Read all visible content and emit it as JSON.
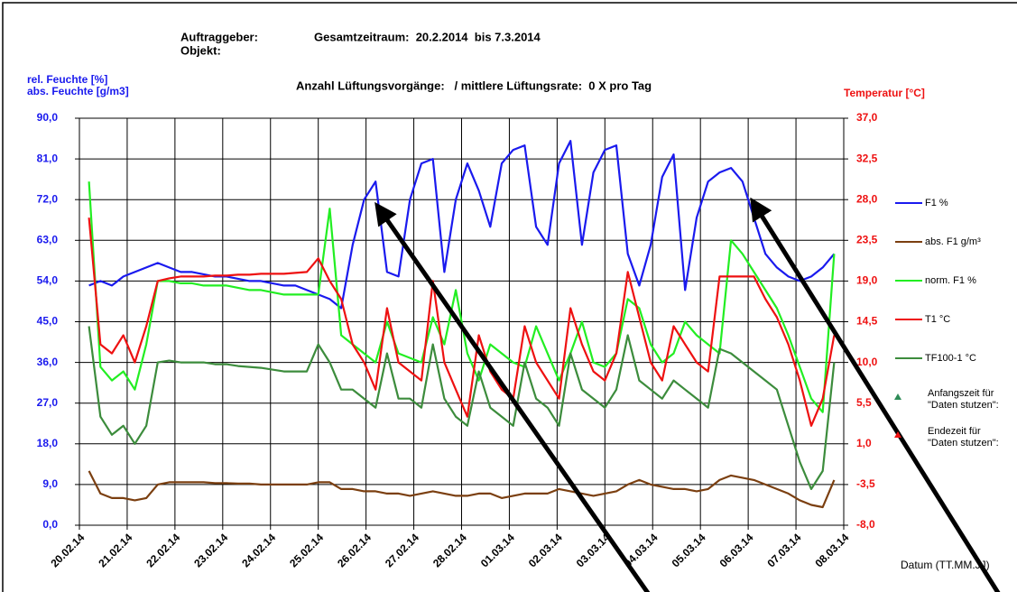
{
  "chart_data": {
    "type": "line",
    "title": "Gesamtzeitraum:  20.2.2014  bis 7.3.2014",
    "subtitle": "Anzahl Lüftungsvorgänge:   / mittlere Lüftungsrate:  0 X pro Tag",
    "annotations": [
      "Auftraggeber:",
      "Objekt:"
    ],
    "ylabel": [
      "rel. Feuchte [%]",
      "abs. Feuchte [g/m3]"
    ],
    "y2label": "Temperatur [°C]",
    "xlabel": "Datum (TT.MM.JJ)",
    "grid": true,
    "legend": "right",
    "xlim": [
      0,
      16
    ],
    "xticks": [
      {
        "value": 0,
        "label": "20.02.14"
      },
      {
        "value": 1,
        "label": "21.02.14"
      },
      {
        "value": 2,
        "label": "22.02.14"
      },
      {
        "value": 3,
        "label": "23.02.14"
      },
      {
        "value": 4,
        "label": "24.02.14"
      },
      {
        "value": 5,
        "label": "25.02.14"
      },
      {
        "value": 6,
        "label": "26.02.14"
      },
      {
        "value": 7,
        "label": "27.02.14"
      },
      {
        "value": 8,
        "label": "28.02.14"
      },
      {
        "value": 9,
        "label": "01.03.14"
      },
      {
        "value": 10,
        "label": "02.03.14"
      },
      {
        "value": 11,
        "label": "03.03.14"
      },
      {
        "value": 12,
        "label": "04.03.14"
      },
      {
        "value": 13,
        "label": "05.03.14"
      },
      {
        "value": 14,
        "label": "06.03.14"
      },
      {
        "value": 15,
        "label": "07.03.14"
      },
      {
        "value": 16,
        "label": "08.03.14"
      }
    ],
    "ylim": [
      0,
      90
    ],
    "yticks": [
      {
        "value": 0,
        "label": "0,0"
      },
      {
        "value": 9,
        "label": "9,0"
      },
      {
        "value": 18,
        "label": "18,0"
      },
      {
        "value": 27,
        "label": "27,0"
      },
      {
        "value": 36,
        "label": "36,0"
      },
      {
        "value": 45,
        "label": "45,0"
      },
      {
        "value": 54,
        "label": "54,0"
      },
      {
        "value": 63,
        "label": "63,0"
      },
      {
        "value": 72,
        "label": "72,0"
      },
      {
        "value": 81,
        "label": "81,0"
      },
      {
        "value": 90,
        "label": "90,0"
      }
    ],
    "y2lim": [
      -8,
      37
    ],
    "y2ticks": [
      {
        "value": -8,
        "label": "-8,0"
      },
      {
        "value": -3.5,
        "label": "-3,5"
      },
      {
        "value": 1,
        "label": "1,0"
      },
      {
        "value": 5.5,
        "label": "5,5"
      },
      {
        "value": 10,
        "label": "10,0"
      },
      {
        "value": 14.5,
        "label": "14,5"
      },
      {
        "value": 19,
        "label": "19,0"
      },
      {
        "value": 23.5,
        "label": "23,5"
      },
      {
        "value": 28,
        "label": "28,0"
      },
      {
        "value": 32.5,
        "label": "32,5"
      },
      {
        "value": 37,
        "label": "37,0"
      }
    ],
    "x": [
      0.2,
      0.44,
      0.68,
      0.92,
      1.16,
      1.4,
      1.64,
      1.88,
      2.12,
      2.36,
      2.6,
      2.84,
      3.08,
      3.32,
      3.56,
      3.8,
      4.04,
      4.28,
      4.52,
      4.76,
      5,
      5.24,
      5.48,
      5.72,
      5.96,
      6.2,
      6.44,
      6.68,
      6.92,
      7.16,
      7.4,
      7.64,
      7.88,
      8.12,
      8.36,
      8.6,
      8.84,
      9.08,
      9.32,
      9.56,
      9.8,
      10.04,
      10.28,
      10.52,
      10.76,
      11,
      11.24,
      11.48,
      11.72,
      11.96,
      12.2,
      12.44,
      12.68,
      12.92,
      13.16,
      13.4,
      13.64,
      13.88,
      14.12,
      14.36,
      14.6,
      14.84,
      15.08,
      15.32,
      15.56,
      15.8
    ],
    "series": [
      {
        "name": "F1 %",
        "color": "#1a1aee",
        "axis": "y",
        "values": [
          53,
          54,
          53,
          55,
          56,
          57,
          58,
          57,
          56,
          56,
          55.5,
          55,
          55,
          54.5,
          54,
          54,
          53.5,
          53,
          53,
          52,
          51,
          50,
          48,
          62,
          72,
          76,
          56,
          55,
          72,
          80,
          81,
          56,
          72,
          80,
          74,
          66,
          80,
          83,
          84,
          66,
          62,
          80,
          85,
          62,
          78,
          83,
          84,
          60,
          53,
          62,
          77,
          82,
          52,
          68,
          76,
          78,
          79,
          76,
          68,
          60,
          57,
          55,
          54,
          55,
          57,
          60
        ]
      },
      {
        "name": "abs. F1 g/m³",
        "color": "#7b3f10",
        "axis": "y",
        "values": [
          12,
          7,
          6,
          6,
          5.5,
          6,
          9,
          9.5,
          9.5,
          9.5,
          9.5,
          9.3,
          9.3,
          9.2,
          9.2,
          9,
          9,
          9,
          9,
          9,
          9.5,
          9.5,
          8,
          8,
          7.5,
          7.5,
          7,
          7,
          6.5,
          7,
          7.5,
          7,
          6.5,
          6.5,
          7,
          7,
          6,
          6.5,
          7,
          7,
          7,
          8,
          7.5,
          7,
          6.5,
          7,
          7.5,
          9,
          10,
          9,
          8.5,
          8,
          8,
          7.5,
          8,
          10,
          11,
          10.5,
          10,
          9,
          8,
          7,
          5.5,
          4.5,
          4,
          10
        ]
      },
      {
        "name": "norm. F1 %",
        "color": "#22ee22",
        "axis": "y",
        "values": [
          76,
          35,
          32,
          34,
          30,
          40,
          54,
          54,
          53.5,
          53.5,
          53,
          53,
          53,
          52.5,
          52,
          52,
          51.5,
          51,
          51,
          51,
          51,
          70,
          42,
          40,
          38,
          36,
          45,
          38,
          37,
          36,
          46,
          40,
          52,
          38,
          32,
          40,
          38,
          36,
          35,
          44,
          38,
          32,
          38,
          45,
          36,
          35,
          38,
          50,
          48,
          40,
          36,
          38,
          45,
          42,
          40,
          38,
          63,
          60,
          56,
          52,
          48,
          42,
          35,
          28,
          25,
          60
        ]
      },
      {
        "name": "T1 °C",
        "color": "#ee1111",
        "axis": "y2",
        "values": [
          26,
          12,
          11,
          13,
          10,
          14,
          19,
          19.3,
          19.5,
          19.5,
          19.5,
          19.6,
          19.6,
          19.7,
          19.7,
          19.8,
          19.8,
          19.8,
          19.9,
          20,
          21.5,
          19,
          17,
          12,
          10,
          7,
          16,
          10,
          9,
          8,
          19,
          10,
          7,
          4,
          13,
          9,
          7,
          6,
          14,
          10,
          8,
          6,
          16,
          12,
          9,
          8,
          11,
          20,
          15,
          10,
          8,
          14,
          12,
          10,
          9,
          19.5,
          19.5,
          19.5,
          19.5,
          17,
          15,
          12,
          8,
          3,
          6,
          13
        ]
      },
      {
        "name": "TF100-1 °C",
        "color": "#3c8c3c",
        "axis": "y2",
        "values": [
          14,
          4,
          2,
          3,
          1,
          3,
          10,
          10.2,
          10,
          10,
          10,
          9.8,
          9.8,
          9.6,
          9.5,
          9.4,
          9.2,
          9,
          9,
          9,
          12,
          10,
          7,
          7,
          6,
          5,
          11,
          6,
          6,
          5,
          12,
          6,
          4,
          3,
          9,
          5,
          4,
          3,
          10,
          6,
          5,
          3,
          11,
          7,
          6,
          5,
          7,
          13,
          8,
          7,
          6,
          8,
          7,
          6,
          5,
          11.5,
          11,
          10,
          9,
          8,
          7,
          3,
          -1,
          -4,
          -2,
          10
        ]
      }
    ],
    "markers": [
      {
        "lines": [
          "Anfangszeit für",
          "\"Daten stutzen\":"
        ],
        "color": "#2e8b57"
      },
      {
        "lines": [
          "Endezeit für",
          "\"Daten stutzen\":"
        ],
        "color": "#ee1111"
      }
    ]
  }
}
